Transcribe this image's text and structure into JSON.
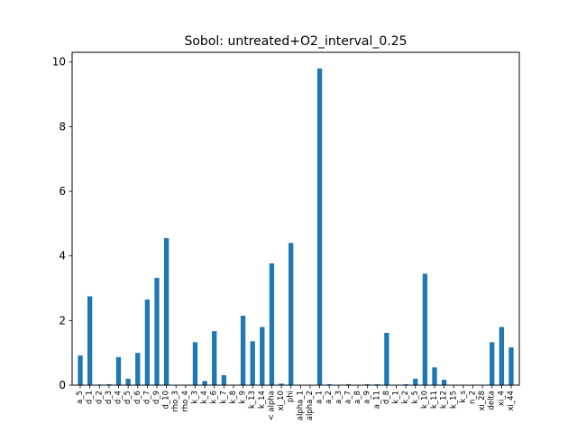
{
  "chart_data": {
    "type": "bar",
    "title": "Sobol: untreated+O2_interval_0.25",
    "xlabel": "",
    "ylabel": "",
    "ylim": [
      0,
      10.3
    ],
    "yticks": [
      0,
      2,
      4,
      6,
      8,
      10
    ],
    "grid": false,
    "bar_color": "#1f77b4",
    "categories": [
      "a_5",
      "d_1",
      "d_2",
      "d_3",
      "d_4",
      "d_5",
      "d_6",
      "d_7",
      "d_9",
      "d_10",
      "rho_3",
      "rho_4",
      "k_3",
      "k_4",
      "k_6",
      "k_7",
      "k_8",
      "k_9",
      "k_13",
      "k_14",
      "k_alpha",
      "xi_10",
      "phi",
      "alpha_1",
      "alpha_2",
      "a_1",
      "a_2",
      "a_3",
      "a_7",
      "a_8",
      "a_9",
      "a_11",
      "d_8",
      "k_1",
      "k_2",
      "k_5",
      "k_10",
      "k_11",
      "k_12",
      "k_15",
      "k_s",
      "n_2",
      "xi_28",
      "delta",
      "xi_4",
      "xi_44"
    ],
    "tick_labels": [
      "a_5",
      "d_1",
      "d_2",
      "d_3",
      "d_4",
      "d_5",
      "d_6",
      "d_7",
      "d_9",
      "d_10",
      "rho_3",
      "rho_4",
      "k_3",
      "k_4",
      "k_6",
      "k_7",
      "k_8",
      "k_9",
      "k_13",
      "k_14",
      "< alpha",
      "xi_10",
      "phi",
      "alpha_1",
      "alpha_2",
      "a_1",
      "a_2",
      "a_3",
      "a_7",
      "a_8",
      "a_9",
      "a_11",
      "d_8",
      "k_1",
      "k_2",
      "k_5",
      "k_10",
      "k_11",
      "k_12",
      "k_15",
      "k_s",
      "n_2",
      "xi_28",
      "delta",
      "xi_4",
      "xi_44"
    ],
    "values": [
      0.92,
      2.75,
      0.02,
      0.03,
      0.87,
      0.2,
      1.0,
      2.65,
      3.32,
      4.55,
      0.0,
      0.0,
      1.33,
      0.13,
      1.67,
      0.31,
      0.0,
      2.15,
      1.36,
      1.8,
      3.77,
      0.05,
      4.4,
      0.0,
      0.0,
      9.8,
      0.03,
      0.0,
      0.03,
      0.0,
      0.03,
      0.03,
      1.62,
      0.0,
      0.03,
      0.2,
      3.45,
      0.55,
      0.17,
      0.0,
      0.0,
      0.0,
      0.0,
      1.33,
      1.8,
      1.17
    ]
  }
}
